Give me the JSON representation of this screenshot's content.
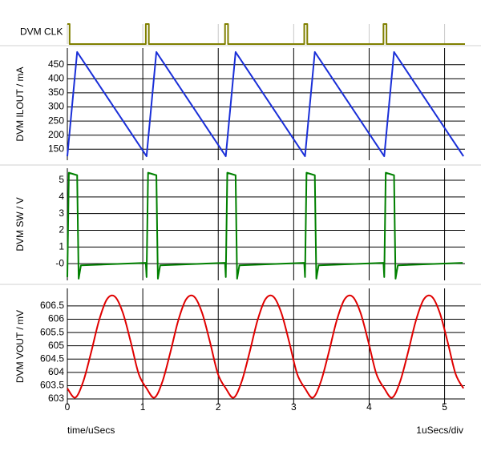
{
  "chart_data": [
    {
      "type": "line",
      "ylabel": "DVM CLK",
      "color": "#808000",
      "x": [
        0,
        0.03,
        0.03,
        1.04,
        1.04,
        1.08,
        1.08,
        2.09,
        2.09,
        2.13,
        2.13,
        3.14,
        3.14,
        3.18,
        3.18,
        4.19,
        4.19,
        4.23,
        4.23,
        5.27
      ],
      "values": [
        1,
        1,
        0,
        0,
        1,
        1,
        0,
        0,
        1,
        1,
        0,
        0,
        1,
        1,
        0,
        0,
        1,
        1,
        0,
        0
      ],
      "xlim": [
        0,
        5.27
      ],
      "xticks": [
        0,
        1,
        2,
        3,
        4,
        5
      ],
      "ylim": [
        0,
        1
      ],
      "grid": true
    },
    {
      "type": "line",
      "ylabel": "DVM ILOUT / mA",
      "color": "#1a2fd8",
      "x": [
        0,
        0.13,
        1.05,
        1.18,
        2.1,
        2.23,
        3.15,
        3.28,
        4.2,
        4.33,
        5.25
      ],
      "values": [
        125,
        495,
        125,
        495,
        125,
        495,
        125,
        495,
        125,
        495,
        125
      ],
      "xlim": [
        0,
        5.27
      ],
      "xticks": [
        0,
        1,
        2,
        3,
        4,
        5
      ],
      "ylim": [
        111,
        509
      ],
      "yticks": [
        150,
        200,
        250,
        300,
        350,
        400,
        450
      ],
      "grid": true
    },
    {
      "type": "line",
      "ylabel": "DVM SW / V",
      "color": "#008000",
      "x": [
        0,
        0.02,
        0.13,
        0.14,
        0.15,
        0.18,
        1.04,
        1.05,
        1.07,
        1.18,
        1.19,
        1.2,
        1.23,
        2.09,
        2.1,
        2.12,
        2.23,
        2.24,
        2.25,
        2.28,
        3.14,
        3.15,
        3.17,
        3.28,
        3.29,
        3.3,
        3.33,
        4.19,
        4.2,
        4.22,
        4.33,
        4.34,
        4.35,
        4.38,
        5.24
      ],
      "values": [
        -0.8,
        5.45,
        5.3,
        2.1,
        -0.9,
        -0.1,
        0.05,
        -0.8,
        5.45,
        5.3,
        2.1,
        -0.9,
        -0.1,
        0.05,
        -0.8,
        5.45,
        5.3,
        2.1,
        -0.9,
        -0.1,
        0.05,
        -0.8,
        5.45,
        5.3,
        2.1,
        -0.9,
        -0.1,
        0.05,
        -0.8,
        5.45,
        5.3,
        2.1,
        -0.9,
        -0.1,
        0.05
      ],
      "xlim": [
        0,
        5.27
      ],
      "xticks": [
        0,
        1,
        2,
        3,
        4,
        5
      ],
      "ylim": [
        -1.0,
        5.72
      ],
      "yticks": [
        {
          "value": 0,
          "label": "-0"
        },
        1,
        2,
        3,
        4,
        5
      ],
      "grid": true
    },
    {
      "type": "line",
      "ylabel": "DVM VOUT / mV",
      "color": "#e00000",
      "smooth": true,
      "x": [
        0,
        0.105,
        0.21,
        0.315,
        0.42,
        0.525,
        0.63,
        0.735,
        0.84,
        0.945,
        1.05,
        1.155,
        1.26,
        1.365,
        1.47,
        1.575,
        1.68,
        1.785,
        1.89,
        1.995,
        2.1,
        2.205,
        2.31,
        2.415,
        2.52,
        2.625,
        2.73,
        2.835,
        2.94,
        3.045,
        3.15,
        3.255,
        3.36,
        3.465,
        3.57,
        3.675,
        3.78,
        3.885,
        3.99,
        4.095,
        4.2,
        4.305,
        4.41,
        4.515,
        4.62,
        4.725,
        4.83,
        4.935,
        5.04,
        5.145,
        5.25
      ],
      "values": [
        603.4,
        603.05,
        603.65,
        604.75,
        605.95,
        606.75,
        606.85,
        606.25,
        605.15,
        603.95,
        603.4,
        603.05,
        603.65,
        604.75,
        605.95,
        606.75,
        606.85,
        606.25,
        605.15,
        603.95,
        603.4,
        603.05,
        603.65,
        604.75,
        605.95,
        606.75,
        606.85,
        606.25,
        605.15,
        603.95,
        603.4,
        603.05,
        603.65,
        604.75,
        605.95,
        606.75,
        606.85,
        606.25,
        605.15,
        603.95,
        603.4,
        603.05,
        603.65,
        604.75,
        605.95,
        606.75,
        606.85,
        606.25,
        605.15,
        603.95,
        603.4
      ],
      "xlim": [
        0,
        5.27
      ],
      "xticks": [
        0,
        1,
        2,
        3,
        4,
        5
      ],
      "ylim": [
        602.79,
        607.16
      ],
      "yticks": [
        603,
        603.5,
        604,
        604.5,
        605,
        605.5,
        606,
        606.5
      ],
      "grid": true,
      "xlabel": "time/uSecs",
      "annotation": "1uSecs/div"
    }
  ]
}
